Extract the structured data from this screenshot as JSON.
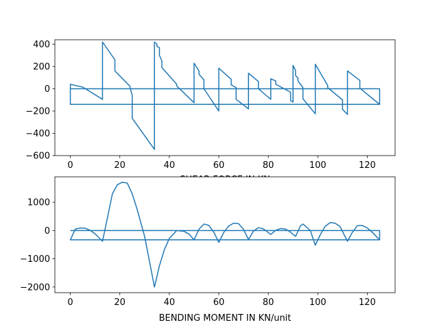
{
  "chart_data": [
    {
      "type": "line",
      "title": "",
      "xlabel": "SHEAR FORCE IN KN",
      "ylabel": "",
      "xlim": [
        -6.25,
        131.25
      ],
      "ylim": [
        -600,
        440
      ],
      "xticks": [
        0,
        20,
        40,
        60,
        80,
        100,
        120
      ],
      "yticks": [
        -600,
        -400,
        -200,
        0,
        200,
        400
      ],
      "grid": false,
      "color": "#1f77b4",
      "series": [
        {
          "x": [
            0,
            125,
            125,
            0,
            0,
            5,
            13,
            13,
            18,
            18,
            24,
            25,
            25,
            34,
            34,
            35,
            35,
            36,
            36,
            37,
            37,
            43,
            43,
            50,
            50,
            52,
            52,
            54,
            54,
            60,
            60,
            65,
            65,
            67,
            67,
            72,
            72,
            76,
            76,
            81,
            81,
            83,
            83,
            89,
            89,
            90,
            90,
            91,
            91,
            92,
            92,
            94,
            94,
            99,
            99,
            104,
            104,
            110,
            110,
            112,
            112,
            117,
            117,
            125
          ],
          "y": [
            0,
            0,
            -140,
            -140,
            40,
            15,
            -95,
            420,
            260,
            160,
            25,
            -60,
            -265,
            -545,
            420,
            400,
            380,
            370,
            300,
            250,
            190,
            40,
            25,
            -125,
            230,
            160,
            130,
            80,
            0,
            -200,
            185,
            85,
            35,
            10,
            -95,
            -180,
            140,
            65,
            0,
            -95,
            90,
            70,
            40,
            -30,
            -105,
            -120,
            210,
            165,
            120,
            95,
            70,
            10,
            -90,
            -225,
            220,
            30,
            10,
            -100,
            -185,
            -230,
            160,
            75,
            5,
            -140
          ]
        }
      ]
    },
    {
      "type": "line",
      "title": "",
      "xlabel": "BENDING MOMENT IN KN/unit",
      "ylabel": "",
      "xlim": [
        -6.25,
        131.25
      ],
      "ylim": [
        -2200,
        1900
      ],
      "xticks": [
        0,
        20,
        40,
        60,
        80,
        100,
        120
      ],
      "yticks": [
        -2000,
        -1000,
        0,
        1000
      ],
      "grid": false,
      "color": "#1f77b4",
      "series": [
        {
          "x": [
            0,
            125,
            125,
            0,
            2,
            4,
            6,
            8,
            10,
            13,
            15,
            17,
            19,
            21,
            23,
            25,
            27,
            30,
            32,
            34,
            36,
            38,
            40,
            43,
            46,
            48,
            50,
            52,
            54,
            56,
            58,
            60,
            62,
            64,
            66,
            68,
            70,
            72,
            74,
            76,
            78,
            81,
            83,
            85,
            87,
            89,
            91,
            93,
            94,
            97,
            99,
            101,
            103,
            105,
            107,
            109,
            112,
            114,
            116,
            118,
            120,
            122,
            125
          ],
          "y": [
            0,
            0,
            -330,
            -330,
            50,
            90,
            80,
            10,
            -120,
            -380,
            450,
            1300,
            1620,
            1710,
            1680,
            1300,
            750,
            -200,
            -1100,
            -2000,
            -1250,
            -680,
            -280,
            0,
            -30,
            -130,
            -330,
            50,
            230,
            180,
            -60,
            -420,
            -70,
            160,
            260,
            240,
            40,
            -320,
            -20,
            100,
            60,
            -140,
            10,
            70,
            50,
            -60,
            -210,
            160,
            230,
            0,
            -520,
            -150,
            150,
            280,
            260,
            140,
            -380,
            -60,
            170,
            180,
            90,
            -60,
            -330
          ]
        }
      ]
    }
  ]
}
